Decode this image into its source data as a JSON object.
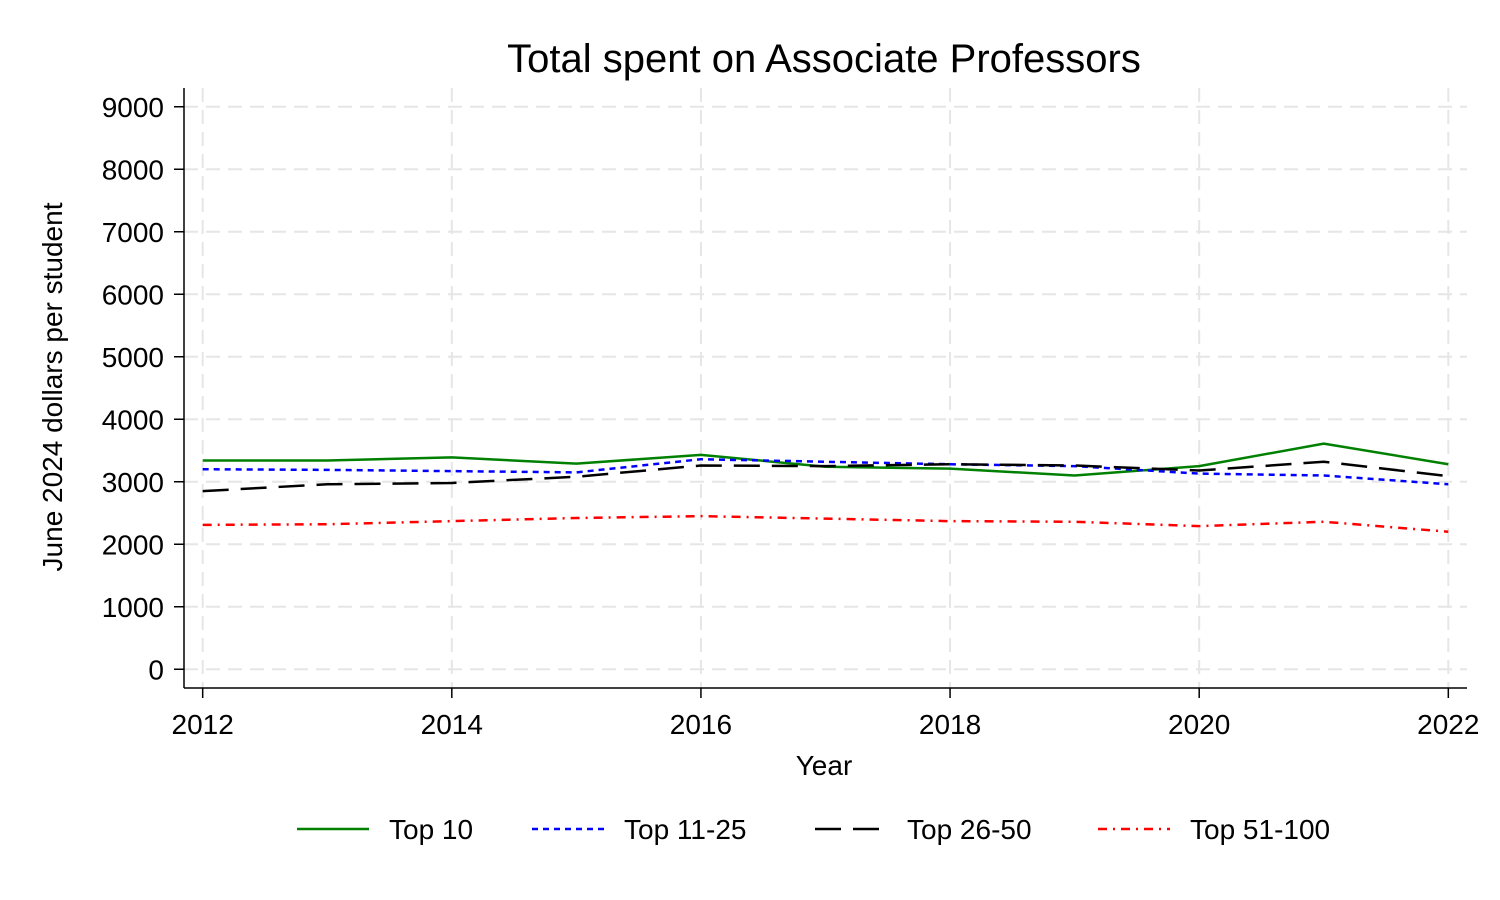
{
  "chart_data": {
    "type": "line",
    "title": "Total spent on Associate Professors",
    "xlabel": "Year",
    "ylabel": "June 2024 dollars per student",
    "x": [
      2012,
      2013,
      2014,
      2015,
      2016,
      2017,
      2018,
      2019,
      2020,
      2021,
      2022
    ],
    "xticks": [
      2012,
      2014,
      2016,
      2018,
      2020,
      2022
    ],
    "yticks": [
      0,
      1000,
      2000,
      3000,
      4000,
      5000,
      6000,
      7000,
      8000,
      9000
    ],
    "xlim": [
      2011.85,
      2022.15
    ],
    "ylim": [
      -300,
      9300
    ],
    "grid": true,
    "legend_position": "bottom",
    "series": [
      {
        "name": "Top 10",
        "color": "#008000",
        "style": "solid",
        "values": [
          3340,
          3340,
          3390,
          3290,
          3430,
          3240,
          3210,
          3100,
          3250,
          3610,
          3280
        ]
      },
      {
        "name": "Top 11-25",
        "color": "#0000ff",
        "style": "short-dash",
        "values": [
          3200,
          3190,
          3170,
          3150,
          3360,
          3320,
          3280,
          3250,
          3130,
          3100,
          2960
        ]
      },
      {
        "name": "Top 26-50",
        "color": "#000000",
        "style": "long-dash",
        "values": [
          2850,
          2960,
          2980,
          3080,
          3260,
          3250,
          3280,
          3260,
          3180,
          3320,
          3090
        ]
      },
      {
        "name": "Top 51-100",
        "color": "#ff0000",
        "style": "dash-dot",
        "values": [
          2310,
          2320,
          2370,
          2420,
          2450,
          2410,
          2370,
          2360,
          2290,
          2360,
          2200
        ]
      }
    ]
  }
}
